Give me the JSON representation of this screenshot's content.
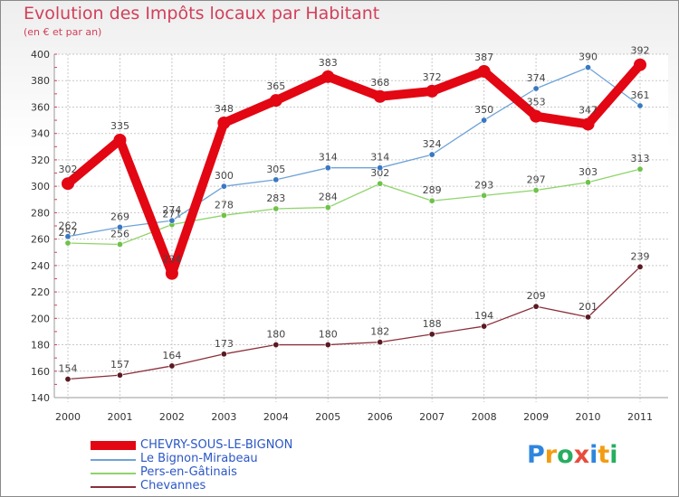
{
  "title": "Evolution des Impôts locaux par Habitant",
  "subtitle": "(en € et par an)",
  "brand": {
    "letters": [
      "P",
      "r",
      "o",
      "x",
      "i",
      "t",
      "i"
    ],
    "colors": [
      "#2e86de",
      "#f39c12",
      "#27ae60",
      "#e74c3c",
      "#2e86de",
      "#f39c12",
      "#27ae60"
    ]
  },
  "chart_data": {
    "type": "line",
    "title": "Evolution des Impôts locaux par Habitant",
    "subtitle": "(en € et par an)",
    "xlabel": "",
    "ylabel": "",
    "x": [
      "2000",
      "2001",
      "2002",
      "2003",
      "2004",
      "2005",
      "2006",
      "2007",
      "2008",
      "2009",
      "2010",
      "2011"
    ],
    "ylim": [
      140,
      400
    ],
    "yticks": [
      140,
      160,
      180,
      200,
      220,
      240,
      260,
      280,
      300,
      320,
      340,
      360,
      380,
      400
    ],
    "grid": true,
    "legend_position": "bottom-left",
    "series": [
      {
        "name": "CHEVRY-SOUS-LE-BIGNON",
        "color": "#e30613",
        "values": [
          302,
          335,
          234,
          348,
          365,
          383,
          368,
          372,
          387,
          353,
          347,
          392
        ],
        "labels": [
          "302",
          "335",
          "234",
          "348",
          "365",
          "383",
          "368",
          "372",
          "387",
          "353",
          "347",
          "392"
        ]
      },
      {
        "name": "Le Bignon-Mirabeau",
        "color": "#6ea3d8",
        "marker": "#3a78c2",
        "values": [
          262,
          269,
          274,
          300,
          305,
          314,
          314,
          324,
          350,
          374,
          390,
          361
        ],
        "labels": [
          "262",
          "269",
          "274",
          "300",
          "305",
          "314",
          "314",
          "324",
          "350",
          "374",
          "390",
          "361"
        ]
      },
      {
        "name": "Pers-en-Gâtinais",
        "color": "#8fd46a",
        "marker": "#6fc24a",
        "values": [
          257,
          256,
          271,
          278,
          283,
          284,
          302,
          289,
          293,
          297,
          303,
          313
        ],
        "labels": [
          "257",
          "256",
          "271",
          "278",
          "283",
          "284",
          "302",
          "289",
          "293",
          "297",
          "303",
          "313"
        ]
      },
      {
        "name": "Chevannes",
        "color": "#8b2f3a",
        "marker": "#5a1a22",
        "values": [
          154,
          157,
          164,
          173,
          180,
          180,
          182,
          188,
          194,
          209,
          201,
          239
        ],
        "labels": [
          "154",
          "157",
          "164",
          "173",
          "180",
          "180",
          "182",
          "188",
          "194",
          "209",
          "201",
          "239"
        ]
      }
    ]
  }
}
